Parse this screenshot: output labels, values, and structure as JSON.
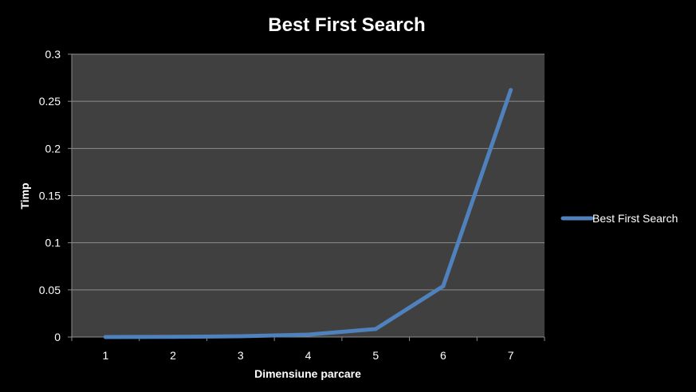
{
  "chart_data": {
    "type": "line",
    "title": "Best First Search",
    "xlabel": "Dimensiune parcare",
    "ylabel": "Timp",
    "categories": [
      "1",
      "2",
      "3",
      "4",
      "5",
      "6",
      "7"
    ],
    "series": [
      {
        "name": "Best First Search",
        "values": [
          0.0,
          0.0002,
          0.0008,
          0.0025,
          0.0085,
          0.054,
          0.262
        ],
        "color": "#4f81bd"
      }
    ],
    "y_ticks": [
      "0",
      "0.05",
      "0.1",
      "0.15",
      "0.2",
      "0.25",
      "0.3"
    ],
    "ylim": [
      0,
      0.3
    ],
    "grid": true,
    "legend": "right",
    "colors": {
      "background": "#000000",
      "plot_area": "#404040",
      "gridline": "#8c8c8c",
      "text": "#ffffff"
    }
  }
}
